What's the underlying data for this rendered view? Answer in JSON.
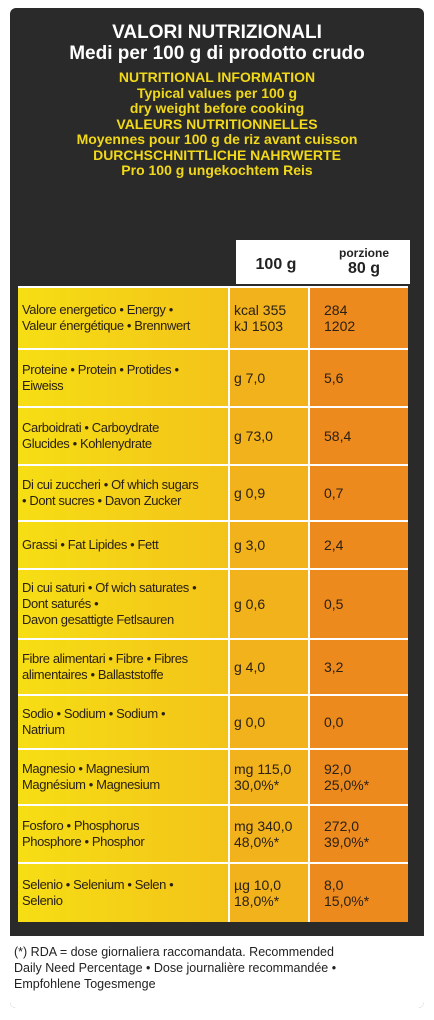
{
  "header": {
    "lines_white": [
      "VALORI NUTRIZIONALI",
      "Medi per 100 g di prodotto crudo"
    ],
    "lines_yellow": [
      "NUTRITIONAL INFORMATION",
      "Typical values per 100 g",
      "dry weight before cooking",
      "VALEURS NUTRITIONNELLES",
      "Moyennes pour 100 g de riz avant cuisson",
      "DURCHSCHNITTLICHE NAHRWERTE",
      "Pro 100 g ungekochtem Reis"
    ]
  },
  "table": {
    "columns": {
      "per100": "100 g",
      "portion_top": "porzione",
      "portion": "80 g"
    },
    "rows": [
      {
        "label": [
          "Valore energetico • Energy •",
          "Valeur énergétique • Brennwert"
        ],
        "per100": [
          "kcal 355",
          "kJ 1503"
        ],
        "portion": [
          "284",
          "1202"
        ]
      },
      {
        "label": [
          "Proteine • Protein • Protides •",
          "Eiweiss"
        ],
        "per100": [
          "g 7,0"
        ],
        "portion": [
          "5,6"
        ]
      },
      {
        "label": [
          "Carboidrati • Carboydrate",
          "Glucides • Kohlenydrate"
        ],
        "per100": [
          "g 73,0"
        ],
        "portion": [
          "58,4"
        ]
      },
      {
        "label": [
          "Di cui zuccheri • Of which sugars",
          "• Dont sucres • Davon Zucker"
        ],
        "per100": [
          "g 0,9"
        ],
        "portion": [
          "0,7"
        ]
      },
      {
        "label": [
          "Grassi • Fat Lipides • Fett"
        ],
        "per100": [
          "g 3,0"
        ],
        "portion": [
          "2,4"
        ]
      },
      {
        "label": [
          "Di cui saturi • Of wich saturates •",
          "Dont saturés •",
          "Davon gesattigte Fetlsauren"
        ],
        "per100": [
          "g 0,6"
        ],
        "portion": [
          "0,5"
        ]
      },
      {
        "label": [
          "Fibre alimentari • Fibre • Fibres",
          "alimentaires • Ballaststoffe"
        ],
        "per100": [
          "g 4,0"
        ],
        "portion": [
          "3,2"
        ]
      },
      {
        "label": [
          "Sodio • Sodium • Sodium •",
          "Natrium"
        ],
        "per100": [
          "g 0,0"
        ],
        "portion": [
          "0,0"
        ]
      },
      {
        "label": [
          "Magnesio • Magnesium",
          "Magnésium • Magnesium"
        ],
        "per100": [
          "mg 115,0",
          "30,0%*"
        ],
        "portion": [
          "92,0",
          "25,0%*"
        ]
      },
      {
        "label": [
          "Fosforo • Phosphorus",
          "Phosphore • Phosphor"
        ],
        "per100": [
          "mg 340,0",
          "48,0%*"
        ],
        "portion": [
          "272,0",
          "39,0%*"
        ]
      },
      {
        "label": [
          "Selenio • Selenium • Selen •",
          "Selenio"
        ],
        "per100": [
          "µg 10,0",
          "18,0%*"
        ],
        "portion": [
          "8,0",
          "15,0%*"
        ]
      }
    ]
  },
  "footer": [
    "(*) RDA = dose giornaliera raccomandata. Recommended",
    "Daily Need Percentage • Dose journalière recommandée •",
    "Empfohlene Togesmenge"
  ]
}
